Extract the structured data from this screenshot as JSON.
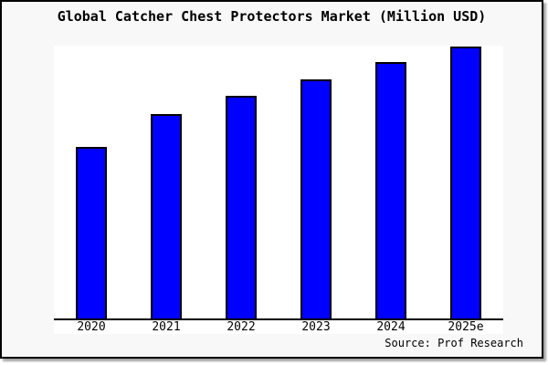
{
  "chart_data": {
    "type": "bar",
    "title": "Global Catcher Chest Protectors Market (Million USD)",
    "categories": [
      "2020",
      "2021",
      "2022",
      "2023",
      "2024",
      "2025e"
    ],
    "values": [
      63,
      75.3,
      81.7,
      88,
      94.2,
      100
    ],
    "value_scale": "relative index, no y-axis labels shown (2025e = 100)",
    "xlabel": "",
    "ylabel": "",
    "ylim": [
      0,
      100.3
    ],
    "grid": false,
    "legend": false,
    "bar_color": "#0000ff",
    "bar_border_color": "#000000",
    "plot_background": "#ffffff",
    "canvas_background": "#f8f8f8"
  },
  "source": {
    "label": "Source: Prof Research"
  }
}
